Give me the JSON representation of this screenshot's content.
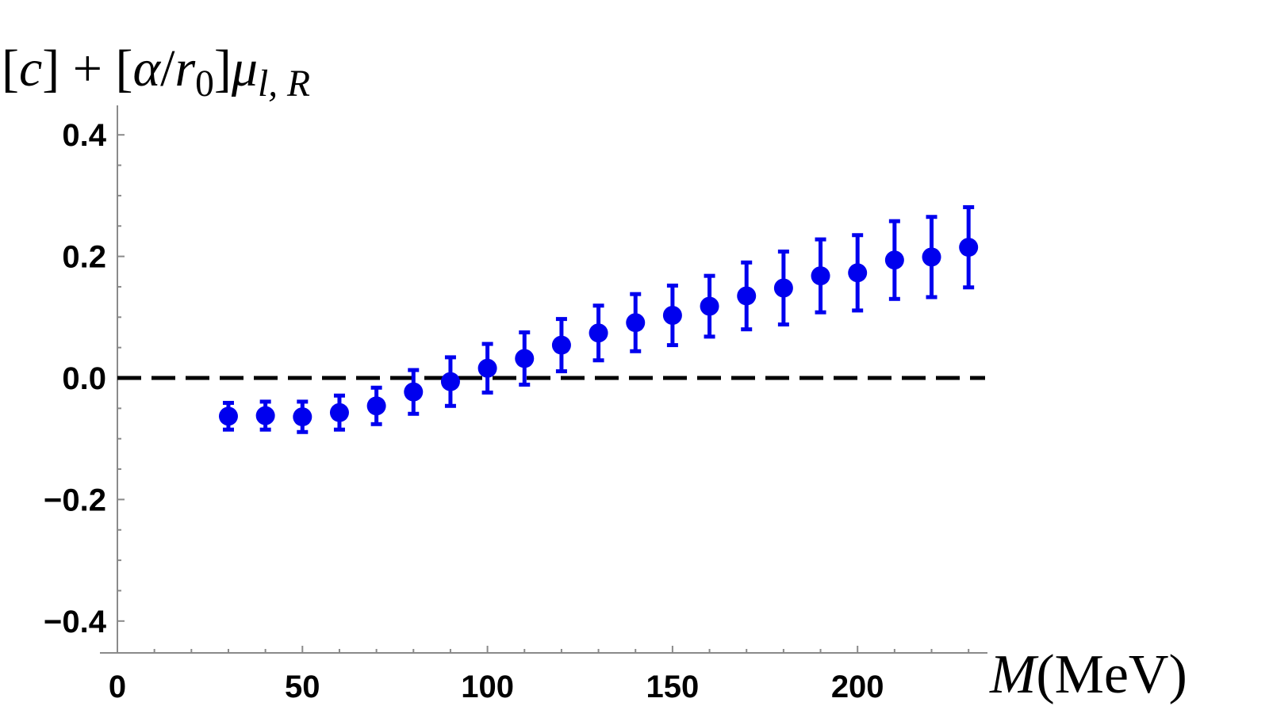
{
  "chart_data": {
    "type": "scatter",
    "title": "",
    "ylabel": {
      "parts": [
        {
          "text": "[",
          "style": "normal"
        },
        {
          "text": "c",
          "style": "italic"
        },
        {
          "text": "] + [",
          "style": "normal"
        },
        {
          "text": "α",
          "style": "italic"
        },
        {
          "text": "/",
          "style": "normal"
        },
        {
          "text": "r",
          "style": "italic"
        },
        {
          "text": "0",
          "style": "sub"
        },
        {
          "text": "]",
          "style": "normal"
        },
        {
          "text": "μ",
          "style": "italic"
        },
        {
          "text": "l, R",
          "style": "sub-italic"
        }
      ]
    },
    "xlabel": {
      "parts": [
        {
          "text": "M",
          "style": "italic"
        },
        {
          "text": "(MeV)",
          "style": "normal"
        }
      ]
    },
    "xlim": [
      0,
      235
    ],
    "ylim": [
      -0.44,
      0.44
    ],
    "xticks": [
      0,
      50,
      100,
      150,
      200
    ],
    "yticks": [
      0.4,
      0.2,
      0.0,
      -0.2,
      -0.4
    ],
    "xtick_labels": [
      "0",
      "50",
      "100",
      "150",
      "200"
    ],
    "ytick_labels": [
      "0.4",
      "0.2",
      "0.0",
      "−0.2",
      "−0.4"
    ],
    "reference_line": {
      "y": 0.0,
      "style": "dashed",
      "color": "#000000"
    },
    "grid": false,
    "series": [
      {
        "color": "#0000ee",
        "points": [
          {
            "x": 30,
            "y": -0.063,
            "err": 0.022
          },
          {
            "x": 40,
            "y": -0.062,
            "err": 0.023
          },
          {
            "x": 50,
            "y": -0.064,
            "err": 0.025
          },
          {
            "x": 60,
            "y": -0.057,
            "err": 0.028
          },
          {
            "x": 70,
            "y": -0.046,
            "err": 0.03
          },
          {
            "x": 80,
            "y": -0.023,
            "err": 0.036
          },
          {
            "x": 90,
            "y": -0.006,
            "err": 0.04
          },
          {
            "x": 100,
            "y": 0.016,
            "err": 0.04
          },
          {
            "x": 110,
            "y": 0.032,
            "err": 0.043
          },
          {
            "x": 120,
            "y": 0.054,
            "err": 0.043
          },
          {
            "x": 130,
            "y": 0.074,
            "err": 0.045
          },
          {
            "x": 140,
            "y": 0.091,
            "err": 0.047
          },
          {
            "x": 150,
            "y": 0.103,
            "err": 0.049
          },
          {
            "x": 160,
            "y": 0.118,
            "err": 0.05
          },
          {
            "x": 170,
            "y": 0.135,
            "err": 0.055
          },
          {
            "x": 180,
            "y": 0.148,
            "err": 0.06
          },
          {
            "x": 190,
            "y": 0.168,
            "err": 0.06
          },
          {
            "x": 200,
            "y": 0.173,
            "err": 0.062
          },
          {
            "x": 210,
            "y": 0.194,
            "err": 0.064
          },
          {
            "x": 220,
            "y": 0.199,
            "err": 0.066
          },
          {
            "x": 230,
            "y": 0.215,
            "err": 0.066
          }
        ]
      }
    ]
  }
}
